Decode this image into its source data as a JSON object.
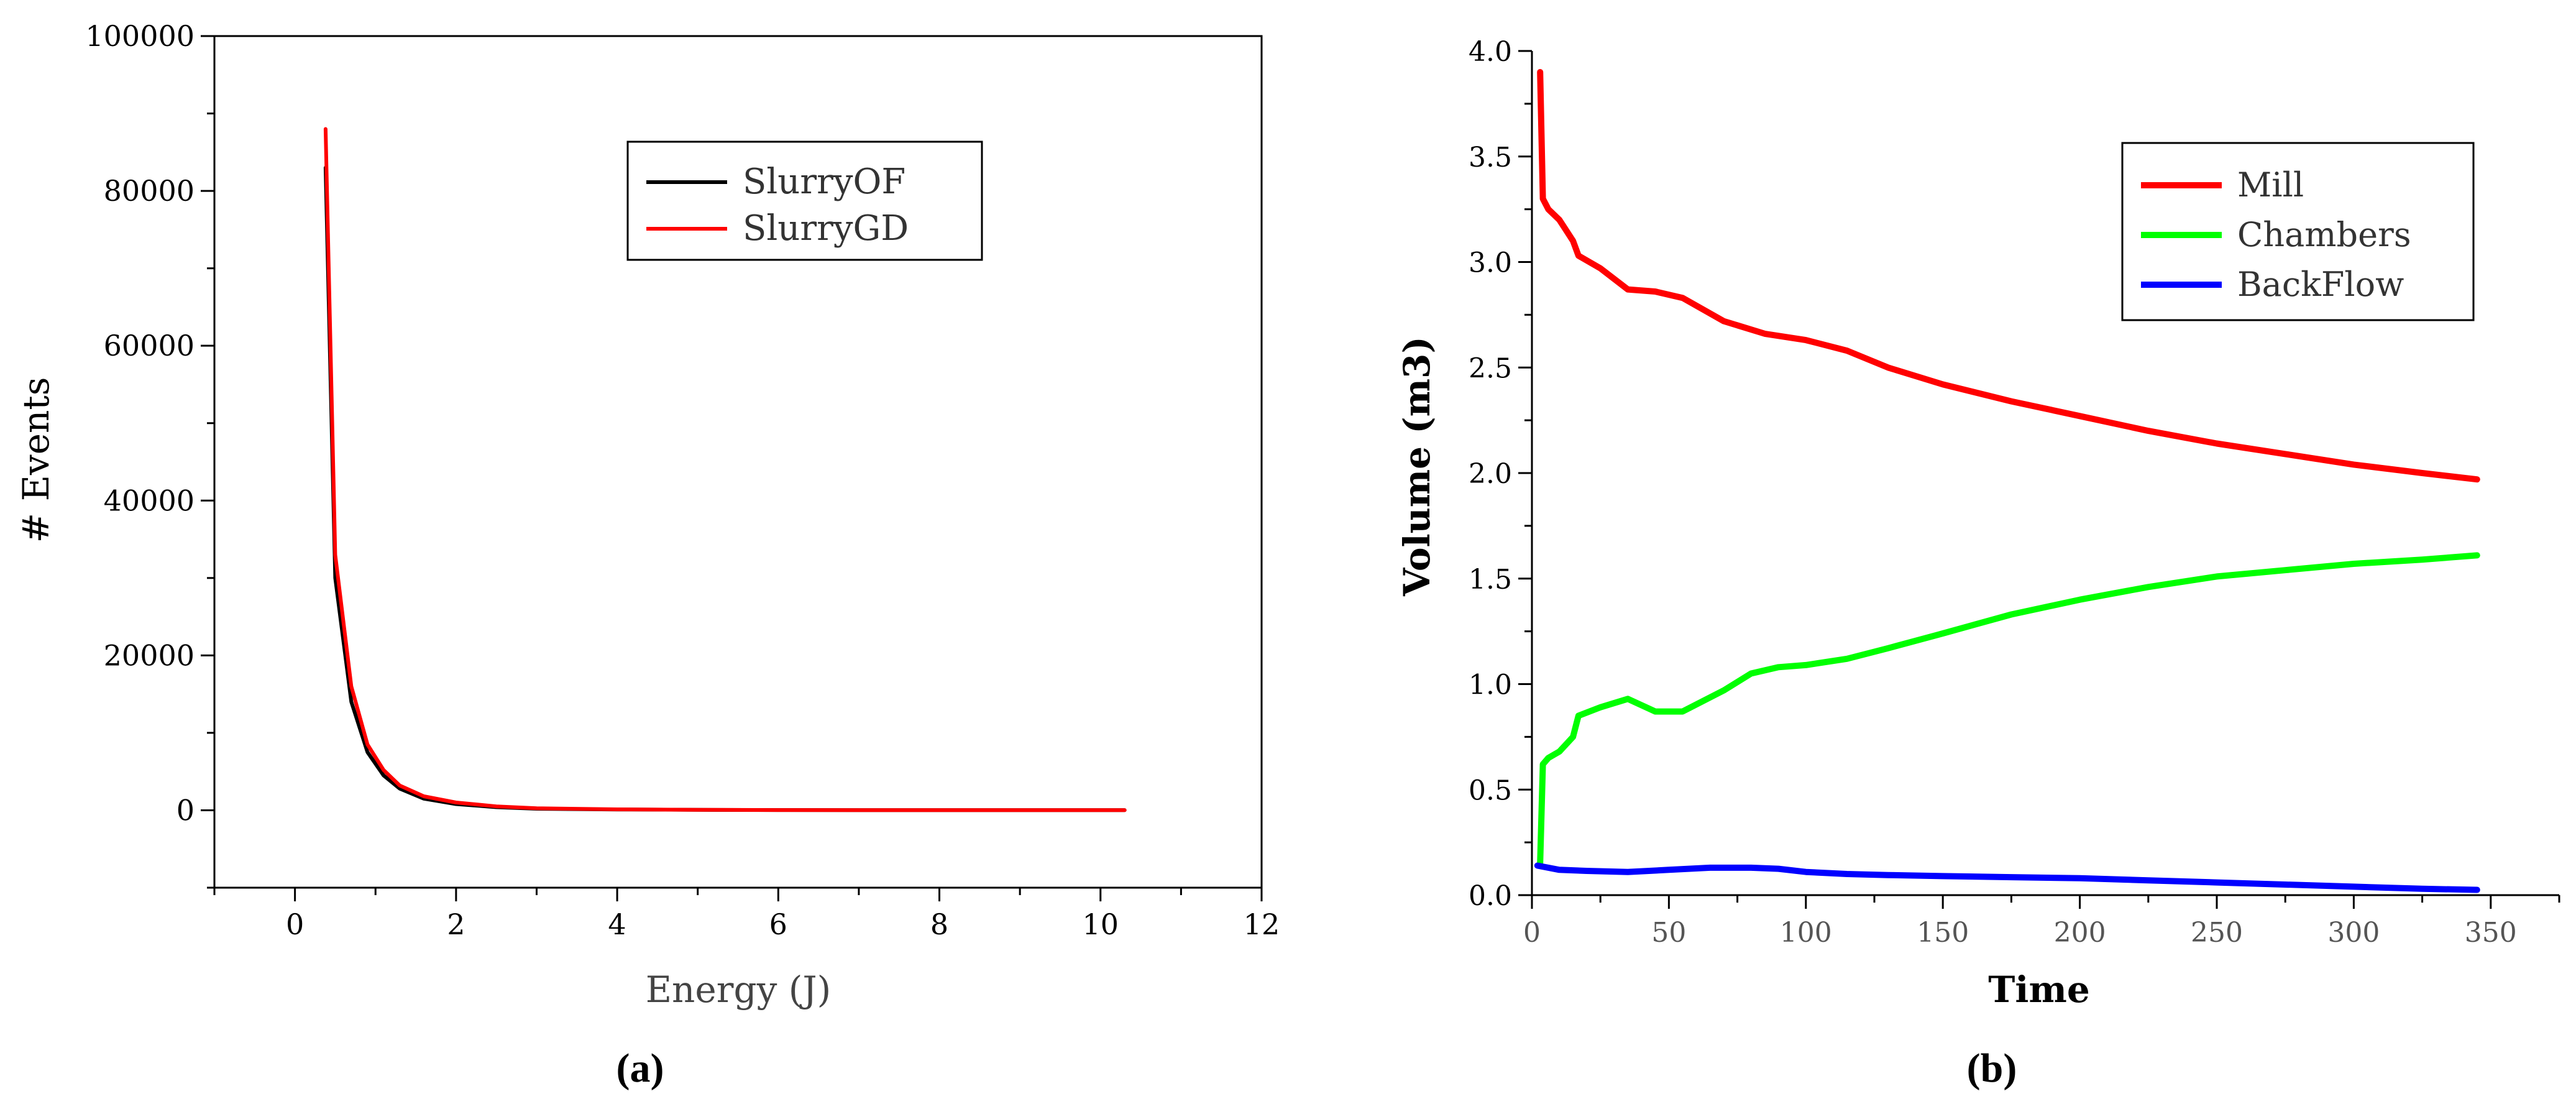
{
  "chart_data": [
    {
      "type": "line",
      "panel_label": "(a)",
      "title": "",
      "xlabel": "Energy (J)",
      "ylabel": "# Events",
      "xlim": [
        -1,
        12
      ],
      "ylim": [
        -10000,
        100000
      ],
      "xticks": [
        0,
        2,
        4,
        6,
        8,
        10,
        12
      ],
      "yticks": [
        0,
        20000,
        40000,
        60000,
        80000,
        100000
      ],
      "grid": false,
      "legend": "top-right",
      "series": [
        {
          "name": "SlurryOF",
          "color": "#000000",
          "x": [
            0.38,
            0.5,
            0.7,
            0.9,
            1.1,
            1.3,
            1.6,
            2.0,
            2.5,
            3.0,
            4.0,
            5.0,
            6.0,
            7.0,
            8.0,
            9.0,
            10.3
          ],
          "y": [
            83000,
            30000,
            14000,
            7500,
            4500,
            2800,
            1500,
            800,
            400,
            200,
            100,
            50,
            30,
            20,
            10,
            10,
            10
          ]
        },
        {
          "name": "SlurryGD",
          "color": "#ff0000",
          "x": [
            0.38,
            0.5,
            0.7,
            0.9,
            1.1,
            1.3,
            1.6,
            2.0,
            2.5,
            3.0,
            4.0,
            5.0,
            6.0,
            7.0,
            8.0,
            9.0,
            10.3
          ],
          "y": [
            88000,
            33000,
            16000,
            8500,
            5200,
            3200,
            1800,
            1000,
            500,
            250,
            120,
            60,
            30,
            20,
            10,
            10,
            10
          ]
        }
      ]
    },
    {
      "type": "line",
      "panel_label": "(b)",
      "title": "",
      "xlabel": "Time",
      "ylabel": "Volume (m3)",
      "xlim": [
        0,
        375
      ],
      "ylim": [
        0,
        4.0
      ],
      "xticks": [
        0,
        50,
        100,
        150,
        200,
        250,
        300,
        350
      ],
      "yticks": [
        0.0,
        0.5,
        1.0,
        1.5,
        2.0,
        2.5,
        3.0,
        3.5,
        4.0
      ],
      "grid": false,
      "legend": "top-right",
      "series": [
        {
          "name": "Mill",
          "color": "#ff0000",
          "x": [
            3,
            4,
            6,
            10,
            15,
            17,
            25,
            35,
            45,
            55,
            70,
            85,
            100,
            115,
            130,
            150,
            175,
            200,
            225,
            250,
            275,
            300,
            325,
            345
          ],
          "y": [
            3.9,
            3.3,
            3.25,
            3.2,
            3.1,
            3.03,
            2.97,
            2.87,
            2.86,
            2.83,
            2.72,
            2.66,
            2.63,
            2.58,
            2.5,
            2.42,
            2.34,
            2.27,
            2.2,
            2.14,
            2.09,
            2.04,
            2.0,
            1.97
          ]
        },
        {
          "name": "Chambers",
          "color": "#00ff00",
          "x": [
            3,
            4,
            6,
            10,
            15,
            17,
            25,
            35,
            45,
            55,
            70,
            80,
            90,
            100,
            115,
            130,
            150,
            175,
            200,
            225,
            250,
            275,
            300,
            325,
            345
          ],
          "y": [
            0.15,
            0.62,
            0.65,
            0.68,
            0.75,
            0.85,
            0.89,
            0.93,
            0.87,
            0.87,
            0.97,
            1.05,
            1.08,
            1.09,
            1.12,
            1.17,
            1.24,
            1.33,
            1.4,
            1.46,
            1.51,
            1.54,
            1.57,
            1.59,
            1.61
          ]
        },
        {
          "name": "BackFlow",
          "color": "#0000ff",
          "x": [
            2,
            10,
            20,
            35,
            50,
            65,
            80,
            90,
            100,
            115,
            130,
            150,
            175,
            200,
            225,
            250,
            275,
            300,
            325,
            345
          ],
          "y": [
            0.14,
            0.12,
            0.115,
            0.11,
            0.12,
            0.13,
            0.13,
            0.125,
            0.11,
            0.1,
            0.095,
            0.09,
            0.085,
            0.08,
            0.07,
            0.06,
            0.05,
            0.04,
            0.03,
            0.025
          ]
        }
      ]
    }
  ]
}
